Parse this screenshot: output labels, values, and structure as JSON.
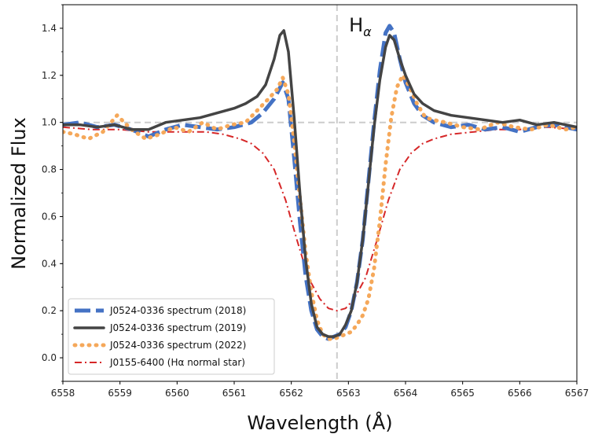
{
  "chart_data": {
    "type": "line",
    "xlabel": "Wavelength (Å)",
    "ylabel": "Normalized Flux",
    "xlim": [
      6558,
      6567
    ],
    "ylim": [
      -0.1,
      1.5
    ],
    "x_ticks": [
      "6558",
      "6559",
      "6560",
      "6561",
      "6562",
      "6563",
      "6564",
      "6565",
      "6566",
      "6567"
    ],
    "y_ticks": [
      "0.0",
      "0.2",
      "0.4",
      "0.6",
      "0.8",
      "1.0",
      "1.2",
      "1.4"
    ],
    "reference_lines": {
      "vertical_x": 6562.8,
      "horizontal_y": 1.0
    },
    "annotation": {
      "text": "H",
      "subscript": "α",
      "x": 6562.9,
      "y": 1.4
    },
    "legend_position": "lower-left",
    "series": [
      {
        "name": "J0524-0336 spectrum (2018)",
        "color": "#4472c4",
        "style": "dashed-thick",
        "x": [
          6558,
          6558.3,
          6558.6,
          6558.9,
          6559.2,
          6559.5,
          6559.8,
          6560.1,
          6560.4,
          6560.7,
          6561.0,
          6561.3,
          6561.5,
          6561.7,
          6561.85,
          6561.95,
          6562.05,
          6562.15,
          6562.25,
          6562.35,
          6562.45,
          6562.55,
          6562.65,
          6562.75,
          6562.85,
          6562.95,
          6563.05,
          6563.15,
          6563.25,
          6563.35,
          6563.45,
          6563.55,
          6563.65,
          6563.72,
          6563.8,
          6563.9,
          6564.0,
          6564.15,
          6564.3,
          6564.5,
          6564.8,
          6565.1,
          6565.4,
          6565.7,
          6566.0,
          6566.3,
          6566.6,
          6567
        ],
        "y": [
          0.99,
          1.0,
          0.98,
          0.99,
          0.97,
          0.94,
          0.97,
          0.99,
          0.98,
          0.97,
          0.98,
          1.0,
          1.04,
          1.1,
          1.17,
          1.1,
          0.85,
          0.58,
          0.35,
          0.2,
          0.12,
          0.09,
          0.08,
          0.09,
          0.1,
          0.13,
          0.2,
          0.32,
          0.5,
          0.75,
          1.0,
          1.22,
          1.38,
          1.41,
          1.38,
          1.27,
          1.17,
          1.08,
          1.03,
          1.0,
          0.98,
          0.99,
          0.97,
          0.98,
          0.96,
          0.98,
          0.99,
          0.97
        ]
      },
      {
        "name": "J0524-0336 spectrum (2019)",
        "color": "#444444",
        "style": "solid-thick",
        "x": [
          6558,
          6558.3,
          6558.6,
          6558.9,
          6559.2,
          6559.5,
          6559.8,
          6560.1,
          6560.4,
          6560.7,
          6561.0,
          6561.2,
          6561.4,
          6561.55,
          6561.7,
          6561.8,
          6561.87,
          6561.95,
          6562.05,
          6562.15,
          6562.25,
          6562.35,
          6562.45,
          6562.55,
          6562.65,
          6562.75,
          6562.85,
          6562.95,
          6563.05,
          6563.15,
          6563.25,
          6563.35,
          6563.45,
          6563.55,
          6563.65,
          6563.72,
          6563.8,
          6563.9,
          6564.0,
          6564.15,
          6564.3,
          6564.5,
          6564.8,
          6565.1,
          6565.4,
          6565.7,
          6566.0,
          6566.3,
          6566.6,
          6567
        ],
        "y": [
          0.99,
          0.99,
          0.98,
          0.99,
          0.97,
          0.97,
          1.0,
          1.01,
          1.02,
          1.04,
          1.06,
          1.08,
          1.11,
          1.16,
          1.27,
          1.37,
          1.39,
          1.3,
          1.02,
          0.7,
          0.42,
          0.23,
          0.13,
          0.1,
          0.09,
          0.09,
          0.1,
          0.14,
          0.2,
          0.32,
          0.5,
          0.74,
          0.98,
          1.18,
          1.32,
          1.37,
          1.35,
          1.27,
          1.2,
          1.12,
          1.08,
          1.05,
          1.03,
          1.02,
          1.01,
          1.0,
          1.01,
          0.99,
          1.0,
          0.98
        ]
      },
      {
        "name": "J0524-0336 spectrum (2022)",
        "color": "#f5a85a",
        "style": "dotted-thick",
        "x": [
          6558,
          6558.2,
          6558.45,
          6558.7,
          6558.95,
          6559.2,
          6559.45,
          6559.7,
          6559.95,
          6560.2,
          6560.45,
          6560.7,
          6560.95,
          6561.2,
          6561.4,
          6561.6,
          6561.75,
          6561.85,
          6561.95,
          6562.05,
          6562.15,
          6562.25,
          6562.35,
          6562.45,
          6562.55,
          6562.65,
          6562.75,
          6562.85,
          6562.95,
          6563.05,
          6563.15,
          6563.25,
          6563.35,
          6563.45,
          6563.55,
          6563.65,
          6563.75,
          6563.85,
          6563.95,
          6564.05,
          6564.2,
          6564.35,
          6564.5,
          6564.7,
          6565.0,
          6565.3,
          6565.6,
          6565.9,
          6566.2,
          6566.5,
          6566.8,
          6567
        ],
        "y": [
          0.96,
          0.95,
          0.93,
          0.96,
          1.03,
          0.97,
          0.93,
          0.95,
          0.98,
          0.96,
          1.0,
          0.97,
          0.99,
          1.0,
          1.05,
          1.1,
          1.14,
          1.19,
          1.12,
          0.92,
          0.68,
          0.45,
          0.28,
          0.16,
          0.1,
          0.08,
          0.08,
          0.09,
          0.1,
          0.11,
          0.14,
          0.18,
          0.25,
          0.38,
          0.58,
          0.82,
          1.02,
          1.15,
          1.2,
          1.16,
          1.08,
          1.02,
          1.01,
          1.0,
          0.98,
          0.97,
          1.0,
          0.98,
          0.97,
          0.99,
          0.97,
          0.98
        ]
      },
      {
        "name": "J0155-6400 (Hα normal star)",
        "color": "#d62728",
        "style": "dashdot",
        "x": [
          6558,
          6558.5,
          6559,
          6559.5,
          6560,
          6560.5,
          6560.8,
          6561.1,
          6561.3,
          6561.5,
          6561.7,
          6561.9,
          6562.1,
          6562.3,
          6562.5,
          6562.65,
          6562.8,
          6562.95,
          6563.1,
          6563.3,
          6563.5,
          6563.7,
          6563.9,
          6564.1,
          6564.3,
          6564.5,
          6564.8,
          6565.2,
          6565.6,
          6566.0,
          6566.5,
          6567
        ],
        "y": [
          0.98,
          0.97,
          0.97,
          0.96,
          0.96,
          0.96,
          0.95,
          0.93,
          0.91,
          0.87,
          0.8,
          0.67,
          0.5,
          0.34,
          0.25,
          0.21,
          0.2,
          0.21,
          0.25,
          0.34,
          0.5,
          0.67,
          0.8,
          0.87,
          0.91,
          0.93,
          0.95,
          0.96,
          0.97,
          0.97,
          0.98,
          0.97
        ]
      }
    ]
  }
}
